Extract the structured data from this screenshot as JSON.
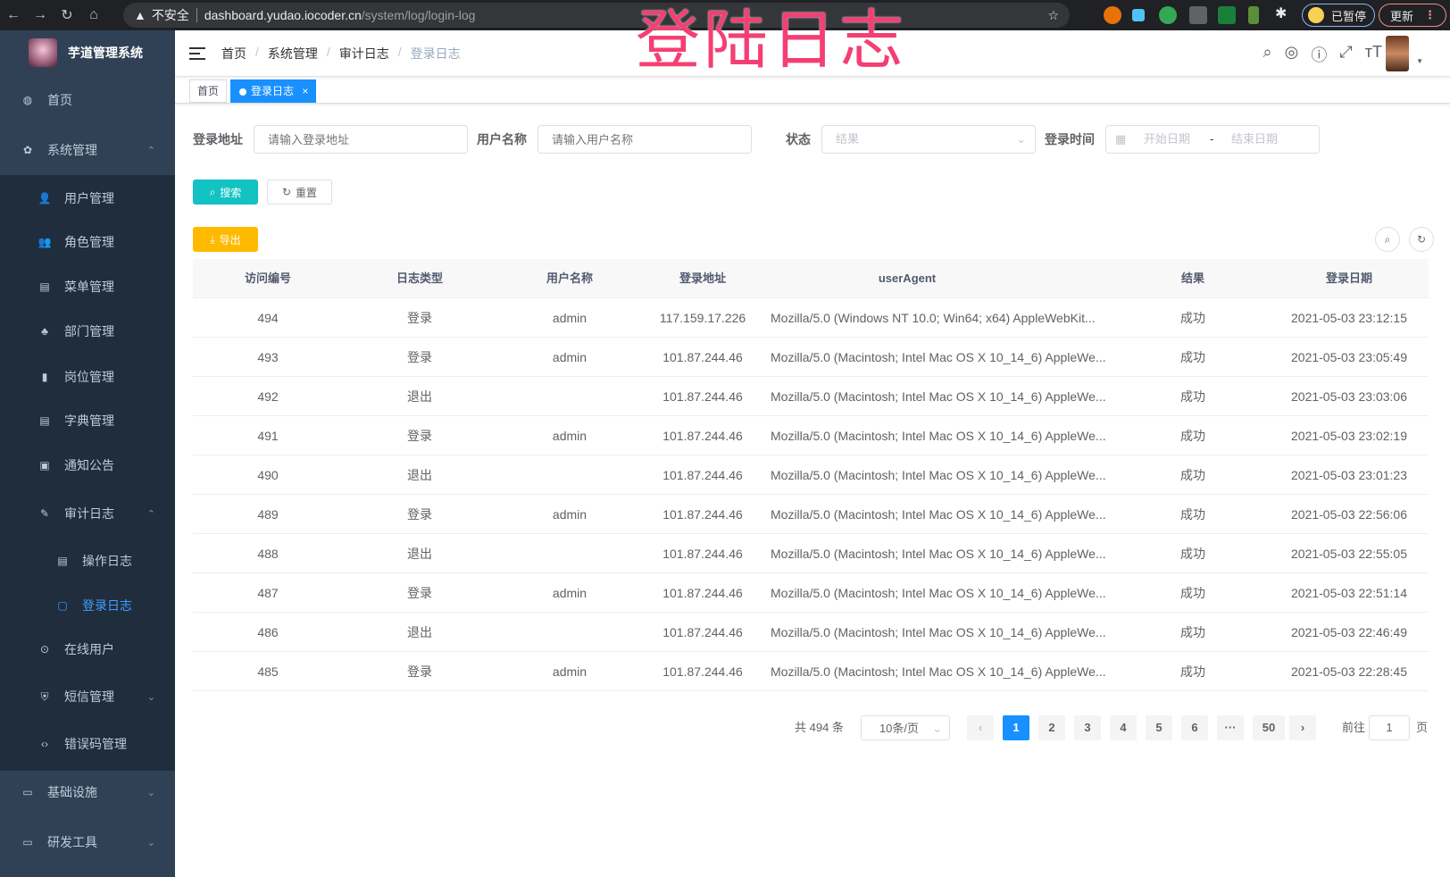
{
  "browser": {
    "security": "不安全",
    "host": "dashboard.yudao.iocoder.cn",
    "path": "/system/log/login-log",
    "profile": "已暂停",
    "update": "更新"
  },
  "overlay_title": "登陆日志",
  "sidebar": {
    "app_name": "芋道管理系统",
    "items": [
      {
        "label": "首页",
        "icon": "dashboard-icon"
      },
      {
        "label": "系统管理",
        "icon": "gear-icon"
      },
      {
        "label": "用户管理",
        "icon": "user-icon"
      },
      {
        "label": "角色管理",
        "icon": "peoples-icon"
      },
      {
        "label": "菜单管理",
        "icon": "tree-table-icon"
      },
      {
        "label": "部门管理",
        "icon": "tree-icon"
      },
      {
        "label": "岗位管理",
        "icon": "post-icon"
      },
      {
        "label": "字典管理",
        "icon": "dict-icon"
      },
      {
        "label": "通知公告",
        "icon": "message-icon"
      },
      {
        "label": "审计日志",
        "icon": "log-icon"
      },
      {
        "label": "操作日志",
        "icon": "form-icon"
      },
      {
        "label": "登录日志",
        "icon": "logininfor-icon",
        "active": true
      },
      {
        "label": "在线用户",
        "icon": "online-icon"
      },
      {
        "label": "短信管理",
        "icon": "shield-icon"
      },
      {
        "label": "错误码管理",
        "icon": "code-icon"
      },
      {
        "label": "基础设施",
        "icon": "monitor-icon"
      },
      {
        "label": "研发工具",
        "icon": "tool-icon"
      }
    ]
  },
  "breadcrumb": [
    "首页",
    "系统管理",
    "审计日志",
    "登录日志"
  ],
  "tags": [
    {
      "label": "首页"
    },
    {
      "label": "登录日志",
      "close": "×"
    }
  ],
  "search": {
    "addr_label": "登录地址",
    "addr_placeholder": "请输入登录地址",
    "user_label": "用户名称",
    "user_placeholder": "请输入用户名称",
    "status_label": "状态",
    "status_placeholder": "结果",
    "time_label": "登录时间",
    "start_placeholder": "开始日期",
    "range_sep": "-",
    "end_placeholder": "结束日期",
    "search_btn": "搜索",
    "reset_btn": "重置"
  },
  "export_btn": "导出",
  "table": {
    "columns": [
      "访问编号",
      "日志类型",
      "用户名称",
      "登录地址",
      "userAgent",
      "结果",
      "登录日期"
    ],
    "rows": [
      [
        "494",
        "登录",
        "admin",
        "117.159.17.226",
        "Mozilla/5.0 (Windows NT 10.0; Win64; x64) AppleWebKit...",
        "成功",
        "2021-05-03 23:12:15"
      ],
      [
        "493",
        "登录",
        "admin",
        "101.87.244.46",
        "Mozilla/5.0 (Macintosh; Intel Mac OS X 10_14_6) AppleWe...",
        "成功",
        "2021-05-03 23:05:49"
      ],
      [
        "492",
        "退出",
        "",
        "101.87.244.46",
        "Mozilla/5.0 (Macintosh; Intel Mac OS X 10_14_6) AppleWe...",
        "成功",
        "2021-05-03 23:03:06"
      ],
      [
        "491",
        "登录",
        "admin",
        "101.87.244.46",
        "Mozilla/5.0 (Macintosh; Intel Mac OS X 10_14_6) AppleWe...",
        "成功",
        "2021-05-03 23:02:19"
      ],
      [
        "490",
        "退出",
        "",
        "101.87.244.46",
        "Mozilla/5.0 (Macintosh; Intel Mac OS X 10_14_6) AppleWe...",
        "成功",
        "2021-05-03 23:01:23"
      ],
      [
        "489",
        "登录",
        "admin",
        "101.87.244.46",
        "Mozilla/5.0 (Macintosh; Intel Mac OS X 10_14_6) AppleWe...",
        "成功",
        "2021-05-03 22:56:06"
      ],
      [
        "488",
        "退出",
        "",
        "101.87.244.46",
        "Mozilla/5.0 (Macintosh; Intel Mac OS X 10_14_6) AppleWe...",
        "成功",
        "2021-05-03 22:55:05"
      ],
      [
        "487",
        "登录",
        "admin",
        "101.87.244.46",
        "Mozilla/5.0 (Macintosh; Intel Mac OS X 10_14_6) AppleWe...",
        "成功",
        "2021-05-03 22:51:14"
      ],
      [
        "486",
        "退出",
        "",
        "101.87.244.46",
        "Mozilla/5.0 (Macintosh; Intel Mac OS X 10_14_6) AppleWe...",
        "成功",
        "2021-05-03 22:46:49"
      ],
      [
        "485",
        "登录",
        "admin",
        "101.87.244.46",
        "Mozilla/5.0 (Macintosh; Intel Mac OS X 10_14_6) AppleWe...",
        "成功",
        "2021-05-03 22:28:45"
      ]
    ]
  },
  "pagination": {
    "total": "共 494 条",
    "page_size": "10条/页",
    "pages": [
      "1",
      "2",
      "3",
      "4",
      "5",
      "6",
      "···",
      "50"
    ],
    "current": "1",
    "goto_label": "前往",
    "goto_value": "1",
    "goto_suffix": "页"
  },
  "colors": {
    "sidebar": "#304156",
    "submenu": "#1f2d3d",
    "primary": "#1890ff",
    "search_btn": "#13c2c2",
    "export_btn": "#ffba00",
    "overlay": "#f43f73"
  }
}
